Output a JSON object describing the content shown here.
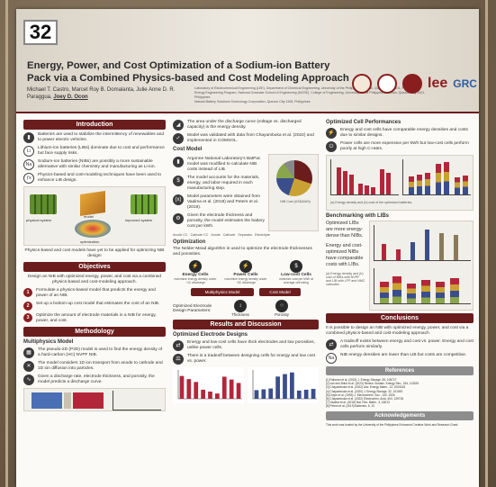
{
  "board_number": "32",
  "title": "Energy, Power, and Cost Optimization of a Sodium-ion Battery Pack via a Combined Physics-based and Cost Modeling Approach",
  "authors": [
    "Michael T. Castro",
    "Marcel Roy B. Domalanta",
    "Julie Anne D. R. Paraggua",
    "Joey D. Ocon"
  ],
  "affiliations": [
    "Laboratory of Electrochemical Engineering (LEE), Department of Chemical Engineering, University of the Philippines Diliman, Quezon City 1101, Philippines",
    "Energy Engineering Program, National Graduate School of Engineering (NGSE), College of Engineering, University of the Philippines Diliman, Quezon City 1101, Philippines",
    "Natural Battery Solutions Technology Corporation, Quezon City 1108, Philippines"
  ],
  "logos": [
    "lee-logo",
    "grc-logo"
  ],
  "logo_text": {
    "lee": "lee",
    "grc": "GRC"
  },
  "sections": {
    "introduction": {
      "heading": "Introduction",
      "items": [
        {
          "icon": "battery-icon",
          "text": "Batteries are used to stabilize the intermittency of renewables and to power electric vehicles."
        },
        {
          "icon": "li-icon",
          "text": "Lithium-ion batteries (LIBs) dominate due to cost and performance but face supply risks."
        },
        {
          "icon": "na-icon",
          "text": "Sodium-ion batteries (NIBs) are possibly a more sustainable alternative with similar chemistry and manufacturing as Li-ion."
        },
        {
          "icon": "fx-icon",
          "text": "Physics-based and cost-modeling techniques have been used to enhance LIB design."
        }
      ],
      "diagram_labels": [
        "physical system",
        "model",
        "improved system",
        "optimization"
      ],
      "note": "Physics-based and cost models have yet to be applied for optimizing NIB design!"
    },
    "objectives": {
      "heading": "Objectives",
      "intro": "Design an NIB with optimized energy, power, and cost via a combined physics-based and cost-modeling approach.",
      "items": [
        "Formulate a physics-based model that predicts the energy and power of an NIB.",
        "Set up a bottom-up cost model that estimates the cost of an NIB.",
        "Optimize the amount of electrode materials in a NIB for energy, power, and cost."
      ]
    },
    "methodology": {
      "heading": "Methodology",
      "subheading": "Multiphysics Model",
      "items": [
        {
          "icon": "p2d-icon",
          "text": "The pseudo-2D (P2D) model is used to find the energy density of a hard-carbon (HC) NVPF NIB."
        },
        {
          "icon": "cross-icon",
          "text": "The model considers 1D ion transport from anode to cathode and 1D ion diffusion into particles."
        },
        {
          "icon": "curve-icon",
          "text": "Given a discharge rate, electrode thickness, and porosity, the model predicts a discharge curve."
        }
      ]
    },
    "col2_top": {
      "items": [
        {
          "icon": "area-icon",
          "text": "The area under the discharge curve (voltage vs. discharged capacity) is the energy density."
        },
        {
          "icon": "check-icon",
          "text": "Model was validated with data from Chayambuka et al. (2022) and implemented in COMSOL."
        }
      ]
    },
    "cost_model": {
      "subheading": "Cost Model",
      "items": [
        {
          "icon": "battery-icon",
          "text": "Argonne National Laboratory's BatPac model was modified to calculate NIB costs instead of LIB."
        },
        {
          "icon": "cost-icon",
          "text": "The model accounts for the materials, energy, and labor required in each manufacturing step."
        },
        {
          "icon": "param-icon",
          "text": "Model parameters were obtained from Vaalma et al. (2018) and Peters et al. (2019)."
        },
        {
          "icon": "gear-icon",
          "text": "Given the electrode thickness and porosity, the model estimates the battery cost per kWh."
        }
      ],
      "chart_label": "NIB Cost (USD/kWh)",
      "legend": [
        "Anode CC",
        "Cathode CC",
        "Anode",
        "Cathode",
        "Separator",
        "Electrolyte"
      ]
    },
    "optimization": {
      "subheading": "Optimization",
      "text": "The Nelder-Mead algorithm is used to optimize the electrode thicknesses and porosities.",
      "targets": [
        {
          "label": "Energy Cells",
          "desc": "maximize energy density under ~1C discharge"
        },
        {
          "label": "Power Cells",
          "desc": "maximize energy density under ~5C discharge"
        },
        {
          "label": "Low-cost Cells",
          "desc": "minimize cost per kWh at average cell rating"
        }
      ],
      "model_box": "Multiphysics Model",
      "cost_box": "Cost Model",
      "params_label": "Optimized Electrode Design Parameters:",
      "params": [
        "Thickness",
        "Porosity"
      ]
    },
    "results": {
      "heading": "Results and Discussion",
      "subheading": "Optimized Electrode Designs",
      "items": [
        {
          "icon": "tradeoff-icon",
          "text": "Energy and low-cost cells have thick electrodes and low porosities, unlike power cells."
        },
        {
          "icon": "scale-icon",
          "text": "There is a tradeoff between designing cells for energy and low cost vs. power."
        }
      ]
    },
    "optimized_perf": {
      "subheading": "Optimized Cell Performances",
      "items": [
        {
          "icon": "energy-icon",
          "text": "Energy and cost cells have comparable energy densities and costs due to similar designs."
        },
        {
          "icon": "power-icon",
          "text": "Power cells are more expensive per kWh but low-cost cells perform poorly at high C-rates."
        }
      ],
      "caption": "(a) Energy density and (b) cost of the optimized batteries."
    },
    "benchmarking": {
      "subheading": "Benchmarking with LIBs",
      "text1": "Optimized LIBs are more energy-dense than NIBs.",
      "text2": "Energy and cost-optimized NIBs have comparable costs with LIBs.",
      "caption": "(a) Energy density and (b) cost of NIBs with NVPF and LIB with LFP and NMC cathodes."
    },
    "conclusions": {
      "heading": "Conclusions",
      "intro": "It is possible to design an NIB with optimized energy, power, and cost via a combined physics-based and cost-modeling approach.",
      "items": [
        {
          "icon": "tradeoff-icon",
          "text": "A tradeoff exists between energy and cost vs. power. Energy and cost cells perform similarly."
        },
        {
          "icon": "na-icon",
          "text": "NIB energy densities are lower than LIB but costs are competitive."
        }
      ]
    },
    "references": {
      "heading": "References",
      "lines": [
        "[1] Rahman et al. (2022) J. Energy Storage, 55, 105727",
        "[2] van den Brink et al. (2023) Renew. Sustain. Energy Rev., 184, 113519",
        "[3] Chayambuka et al. (2022) Adv. Energy Mater., 12, 2200163",
        "[4] Chayambuka et al. (2020) J. Energy Storage, 32, 101949",
        "[5] Doyle et al. (1993) J. Electrochem. Soc., 140, 1526",
        "[6] Chayambuka et al. (2022) Electrochim. Acta, 404, 139726",
        "[7] Vaalma et al. (2018) Nat. Rev. Mater., 3, 18013",
        "[8] Peters et al. (2019) Batteries, 5, 10"
      ]
    },
    "acknowledgements": {
      "heading": "Acknowledgements",
      "text": "This work was funded by the University of the Philippines Enhanced Creative Work and Research Grant."
    }
  },
  "chart_data": [
    {
      "type": "bar",
      "title": "",
      "categories": [
        "E1",
        "E2",
        "E3",
        "P1",
        "P2",
        "P3",
        "C1",
        "C2",
        "C3"
      ],
      "series": [
        {
          "name": "",
          "values": [
            95,
            82,
            70,
            38,
            30,
            22,
            92,
            80,
            66
          ]
        }
      ],
      "ylabel": "Energy Density (Wh kg-1)",
      "ylim": [
        0,
        120
      ]
    },
    {
      "type": "bar",
      "title": "",
      "categories": [
        "E1",
        "E2",
        "E3",
        "P1",
        "P2",
        "P3",
        "C1",
        "C2",
        "C3"
      ],
      "series": [
        {
          "name": "",
          "values": [
            210,
            230,
            250,
            540,
            600,
            640,
            200,
            220,
            240
          ]
        }
      ],
      "ylabel": "Cost (USD/kWh)",
      "ylim": [
        0,
        700
      ]
    }
  ],
  "colors": {
    "maroon": "#6b1d1d",
    "bar_energy": "#b3263a",
    "bar_power": "#3a4e8c",
    "bar_cost": "#c9a233"
  }
}
